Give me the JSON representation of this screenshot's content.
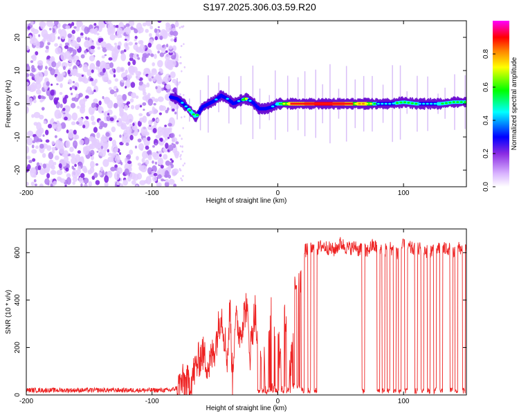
{
  "title": "S197.2025.306.03.59.R20",
  "chart_data": [
    {
      "type": "heatmap",
      "title": "S197.2025.306.03.59.R20",
      "xlabel": "Height of straight line (km)",
      "ylabel": "Frequency (Hz)",
      "xlim": [
        -200,
        150
      ],
      "ylim": [
        -25,
        25
      ],
      "xticks": [
        -200,
        -100,
        0,
        100
      ],
      "xtick_labels": [
        "-200",
        "-100",
        "0",
        "100"
      ],
      "yticks": [
        20,
        10,
        0,
        -10,
        -20
      ],
      "ytick_labels": [
        "20",
        "10",
        "0",
        "-10",
        "-20"
      ],
      "colorbar": {
        "label": "Normalized spectral amplitude",
        "range": [
          0,
          1
        ],
        "ticks": [
          0.0,
          0.2,
          0.4,
          0.6,
          0.8
        ],
        "tick_labels": [
          "0.0",
          "0.2",
          "0.4",
          "0.6",
          "0.8"
        ],
        "colors": [
          "#ffffff",
          "#d9b3ff",
          "#8a2be2",
          "#0000ff",
          "#00ffff",
          "#00ff00",
          "#ffff00",
          "#ff8000",
          "#ff0000",
          "#ff00ff"
        ]
      },
      "noise_region_x": [
        -200,
        -80
      ],
      "signal_track": {
        "x": [
          -85,
          -80,
          -75,
          -70,
          -65,
          -60,
          -55,
          -50,
          -45,
          -40,
          -35,
          -30,
          -25,
          -20,
          -15,
          -10,
          -5,
          0,
          10,
          20,
          30,
          40,
          50,
          60,
          70,
          80,
          90,
          100,
          110,
          120,
          130,
          140,
          150
        ],
        "freq": [
          2,
          1.5,
          0,
          -2,
          -4,
          -1,
          0,
          1,
          2.5,
          1.5,
          0,
          1,
          1.5,
          0.5,
          -1.5,
          -1.5,
          -1,
          0,
          0,
          0,
          0,
          0,
          0,
          0,
          0,
          0,
          0,
          0.5,
          0,
          0,
          0,
          0.5,
          0.5
        ],
        "amplitude": [
          0.3,
          0.35,
          0.45,
          0.5,
          0.6,
          0.3,
          0.35,
          0.4,
          0.35,
          0.4,
          0.35,
          0.4,
          0.65,
          0.3,
          0.4,
          0.35,
          0.4,
          0.5,
          0.75,
          0.8,
          0.95,
          0.95,
          0.9,
          0.7,
          0.75,
          0.45,
          0.45,
          0.55,
          0.5,
          0.45,
          0.5,
          0.5,
          0.5
        ]
      }
    },
    {
      "type": "line",
      "xlabel": "Height of straight line (km)",
      "ylabel": "SNR (10 * v/v)",
      "xlim": [
        -200,
        150
      ],
      "ylim": [
        0,
        700
      ],
      "xticks": [
        -200,
        -100,
        0,
        100
      ],
      "xtick_labels": [
        "-200",
        "-100",
        "0",
        "100"
      ],
      "yticks": [
        0,
        200,
        400,
        600
      ],
      "ytick_labels": [
        "0",
        "200",
        "400",
        "600"
      ],
      "color": "#ee2222",
      "series": [
        {
          "name": "SNR",
          "x": [
            -200,
            -160,
            -120,
            -85,
            -80,
            -75,
            -70,
            -65,
            -60,
            -55,
            -50,
            -45,
            -40,
            -38,
            -36,
            -34,
            -30,
            -25,
            -22,
            -20,
            -18,
            -15,
            -12,
            -10,
            -8,
            -5,
            -2,
            0,
            3,
            5,
            8,
            10,
            13,
            15,
            17,
            20,
            25,
            30,
            35,
            40,
            45,
            50,
            55,
            60,
            62,
            64,
            66,
            68,
            70,
            75,
            80,
            85,
            90,
            95,
            100,
            105,
            110,
            115,
            120,
            125,
            130,
            135,
            140,
            145,
            150
          ],
          "snr": [
            20,
            20,
            20,
            20,
            30,
            55,
            45,
            120,
            180,
            120,
            200,
            350,
            150,
            380,
            60,
            320,
            260,
            380,
            180,
            280,
            360,
            100,
            320,
            20,
            220,
            420,
            300,
            220,
            120,
            350,
            260,
            80,
            420,
            500,
            440,
            600,
            620,
            610,
            630,
            620,
            610,
            640,
            620,
            620,
            630,
            610,
            620,
            640,
            600,
            630,
            620,
            610,
            620,
            600,
            630,
            620,
            610,
            620,
            600,
            620,
            610,
            620,
            600,
            620,
            610
          ],
          "dips_x": [
            -15,
            -12,
            -9,
            -4,
            -1,
            4,
            8,
            20,
            25,
            30,
            68,
            80,
            84,
            88,
            93,
            97,
            102,
            110,
            115,
            120,
            125,
            130,
            138,
            142,
            148
          ]
        }
      ]
    }
  ]
}
